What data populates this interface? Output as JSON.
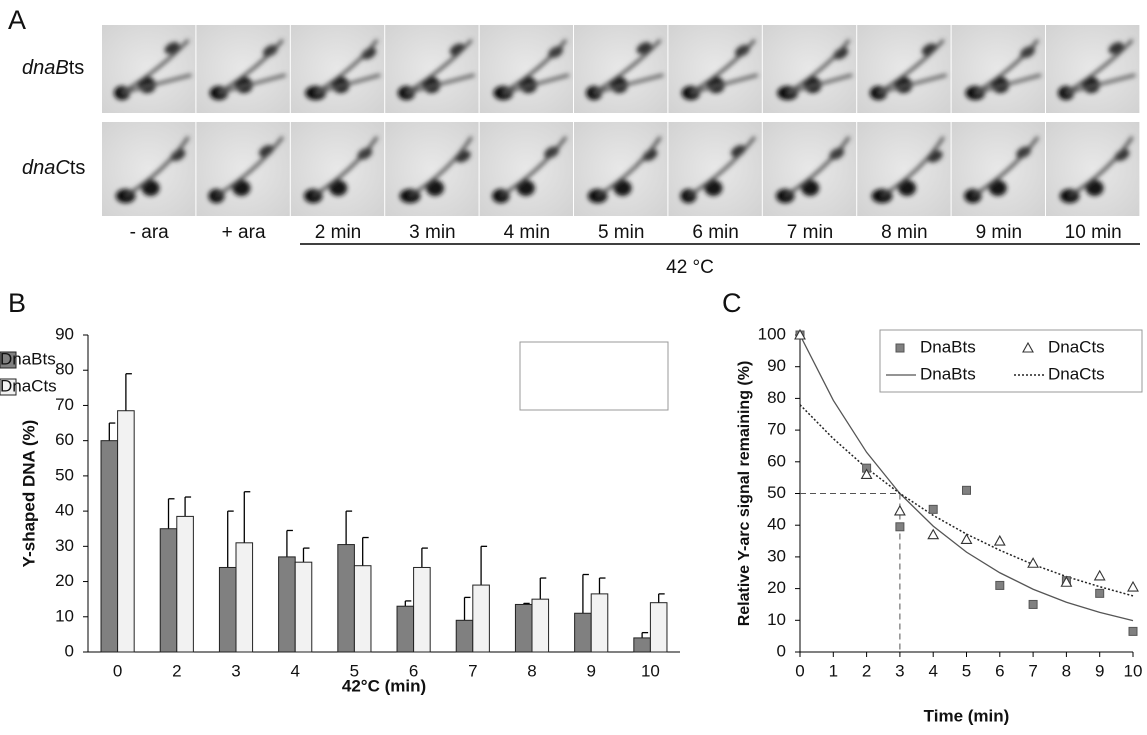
{
  "panel_a": {
    "panel_label": "A",
    "rows": [
      {
        "italic": "dnaB",
        "plain": "ts"
      },
      {
        "italic": "dnaC",
        "plain": "ts"
      }
    ],
    "lanes": [
      "- ara",
      "+ ara",
      "2 min",
      "3 min",
      "4 min",
      "5 min",
      "6 min",
      "7 min",
      "8 min",
      "9 min",
      "10 min"
    ],
    "temperature": "42 °C"
  },
  "chart_data": [
    {
      "type": "bar",
      "panel_label": "B",
      "x_label": "42°C (min)",
      "y_label": "Y-shaped DNA (%)",
      "categories": [
        "0",
        "2",
        "3",
        "4",
        "5",
        "6",
        "7",
        "8",
        "9",
        "10"
      ],
      "series": [
        {
          "name": "DnaBts",
          "color": "#808080",
          "values": [
            60,
            35,
            24,
            27,
            30.5,
            13,
            9,
            13.5,
            11,
            4
          ],
          "errors": [
            5,
            8.5,
            16,
            7.5,
            9.5,
            1.5,
            6.5,
            0.3,
            11,
            1.5
          ]
        },
        {
          "name": "DnaCts",
          "color": "#f2f2f2",
          "values": [
            68.5,
            38.5,
            31,
            25.5,
            24.5,
            24,
            19,
            15,
            16.5,
            14
          ],
          "errors": [
            10.5,
            5.5,
            14.5,
            4,
            8,
            5.5,
            11,
            6,
            4.5,
            2.5
          ]
        }
      ],
      "ylim": [
        0,
        90
      ],
      "yticks": [
        0,
        10,
        20,
        30,
        40,
        50,
        60,
        70,
        80,
        90
      ],
      "legend": "top-right"
    },
    {
      "type": "scatter",
      "panel_label": "C",
      "x_label": "Time (min)",
      "y_label": "Relative Y-arc signal remaining (%)",
      "series": [
        {
          "name": "DnaBts",
          "color": "#808080",
          "marker": "square",
          "x": [
            0,
            2,
            3,
            4,
            5,
            6,
            7,
            8,
            9,
            10
          ],
          "values": [
            100,
            58,
            39.5,
            45,
            51,
            21,
            15,
            22.5,
            18.5,
            6.5
          ]
        },
        {
          "name": "DnaCts",
          "color": "#ffffff",
          "marker": "triangle",
          "x": [
            0,
            2,
            3,
            4,
            5,
            6,
            7,
            8,
            9,
            10
          ],
          "values": [
            100,
            56,
            44.5,
            37,
            35.5,
            35,
            28,
            22,
            24,
            20.5
          ]
        },
        {
          "name": "DnaBts",
          "color": "#555555",
          "line_style": "solid",
          "x": [
            0,
            1,
            2,
            3,
            4,
            5,
            6,
            7,
            8,
            9,
            10
          ],
          "values": [
            100,
            79.4,
            63,
            50,
            39.7,
            31.5,
            25,
            19.8,
            15.7,
            12.5,
            9.9
          ]
        },
        {
          "name": "DnaCts",
          "color": "#222222",
          "line_style": "dotted",
          "x": [
            0,
            1,
            2,
            3,
            4,
            5,
            6,
            7,
            8,
            9,
            10
          ],
          "values": [
            78,
            67.3,
            58,
            50,
            43.1,
            37.2,
            32.1,
            27.6,
            23.8,
            20.6,
            17.7
          ]
        }
      ],
      "reference_x": 3,
      "reference_y": 50,
      "xlim": [
        0,
        10
      ],
      "xticks": [
        0,
        1,
        2,
        3,
        4,
        5,
        6,
        7,
        8,
        9,
        10
      ],
      "ylim": [
        0,
        100
      ],
      "yticks": [
        0,
        10,
        20,
        30,
        40,
        50,
        60,
        70,
        80,
        90,
        100
      ],
      "legend": "top-right"
    }
  ]
}
